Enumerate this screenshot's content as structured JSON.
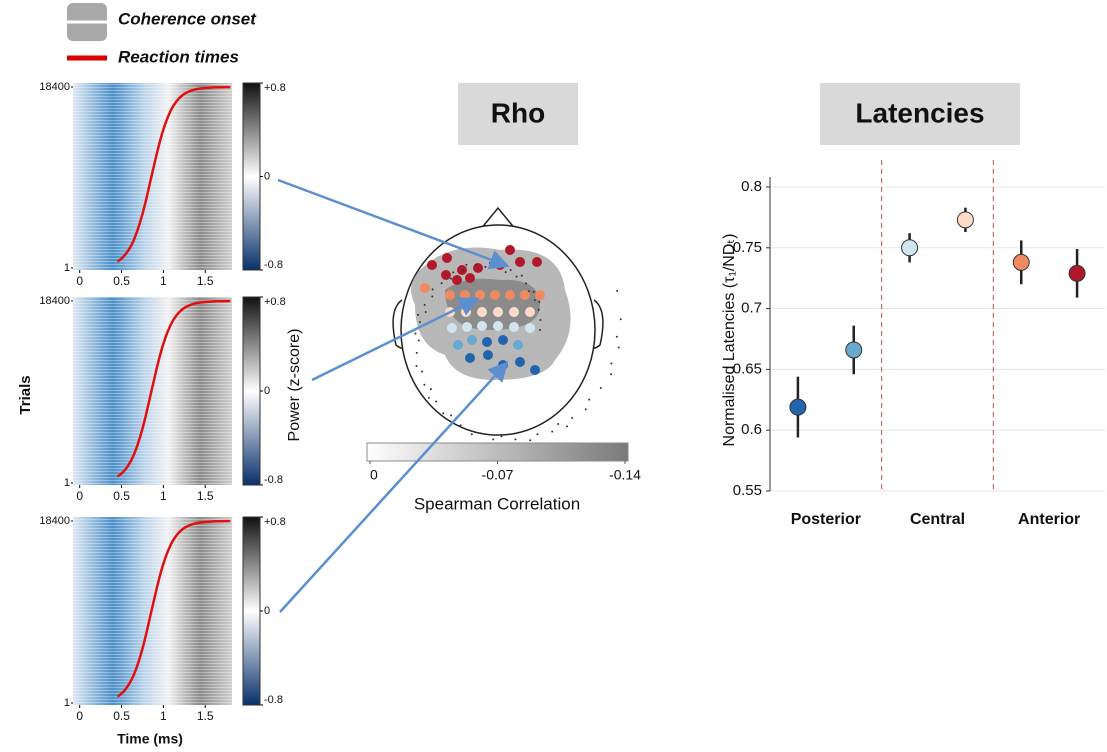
{
  "legend": {
    "items": [
      "Coherence onset",
      "Reaction times"
    ]
  },
  "raster": {
    "ylabel": "Trials",
    "xlabel": "Time (ms)",
    "yticks": [
      1,
      18400
    ],
    "ylim": [
      1,
      18400
    ],
    "xticks": [
      0,
      0.5,
      1,
      1.5
    ],
    "xlim": [
      -0.08,
      1.82
    ],
    "colorbar_label": "Power (z-score)",
    "colorbar_ticks": [
      {
        "value": 0.8,
        "label": "+0.8"
      },
      0,
      -0.8
    ],
    "colorbar_lim": [
      -0.8,
      0.8
    ]
  },
  "topomap": {
    "title": "Rho",
    "colorbar_label": "Spearman Correlation",
    "colorbar_ticks": [
      0,
      -0.07,
      -0.14
    ],
    "colorbar_lim": [
      0,
      -0.14
    ]
  },
  "chart_data": {
    "type": "errorbar",
    "title": "Latencies",
    "ylabel": "Normalised Latencies (τ₁/NDₜ)",
    "groups": [
      "Posterior",
      "Central",
      "Anterior"
    ],
    "values": [
      0.619,
      0.666,
      0.75,
      0.773,
      0.738,
      0.729
    ],
    "errors": [
      0.025,
      0.02,
      0.012,
      0.01,
      0.018,
      0.02
    ],
    "colors": [
      "#2166ac",
      "#67a9cf",
      "#d1e5f0",
      "#fddbc7",
      "#ef8a62",
      "#b2182b"
    ],
    "ylim": [
      0.55,
      0.8
    ],
    "yticks": [
      0.55,
      0.6,
      0.65,
      0.7,
      0.75,
      0.8
    ],
    "grid": true
  }
}
